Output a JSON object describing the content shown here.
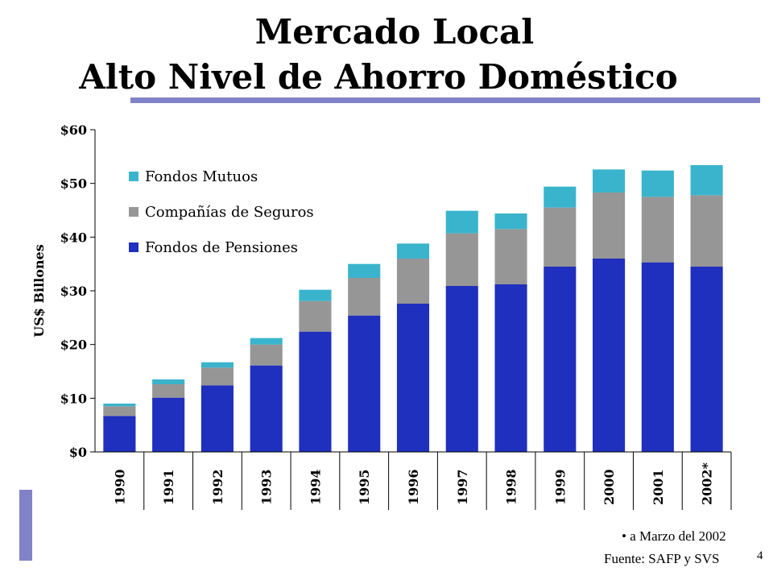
{
  "header": {
    "title_line1": "Mercado Local",
    "title_line2": "Alto Nivel de Ahorro Doméstico"
  },
  "footer": {
    "note": "• a Marzo del 2002",
    "source": "Fuente: SAFP y SVS",
    "page_number": "4"
  },
  "colors": {
    "accent": "#8282c8",
    "fondos_pensiones": "#1f2fbe",
    "companias_seguros": "#969696",
    "fondos_mutuos": "#3ab4cc"
  },
  "chart_data": {
    "type": "bar",
    "stacked": true,
    "ylabel": "US$ Billones",
    "xlabel": "",
    "ylim": [
      0,
      60
    ],
    "yticks": [
      0,
      10,
      20,
      30,
      40,
      50,
      60
    ],
    "ytick_labels": [
      "$0",
      "$10",
      "$20",
      "$30",
      "$40",
      "$50",
      "$60"
    ],
    "legend_position": "top-left",
    "categories": [
      "1990",
      "1991",
      "1992",
      "1993",
      "1994",
      "1995",
      "1996",
      "1997",
      "1998",
      "1999",
      "2000",
      "2001",
      "2002*"
    ],
    "series": [
      {
        "name": "Fondos de Pensiones",
        "color": "#1f2fbe",
        "values": [
          6.7,
          10.1,
          12.4,
          16.1,
          22.4,
          25.4,
          27.6,
          30.9,
          31.2,
          34.5,
          36.0,
          35.3,
          34.5
        ]
      },
      {
        "name": "Compañías de Seguros",
        "color": "#969696",
        "values": [
          1.8,
          2.5,
          3.3,
          3.9,
          5.7,
          7.0,
          8.4,
          9.8,
          10.3,
          11.0,
          12.3,
          12.2,
          13.3
        ]
      },
      {
        "name": "Fondos Mutuos",
        "color": "#3ab4cc",
        "values": [
          0.5,
          0.9,
          1.0,
          1.2,
          2.1,
          2.6,
          2.8,
          4.2,
          2.9,
          3.9,
          4.3,
          4.9,
          5.6
        ]
      }
    ]
  }
}
